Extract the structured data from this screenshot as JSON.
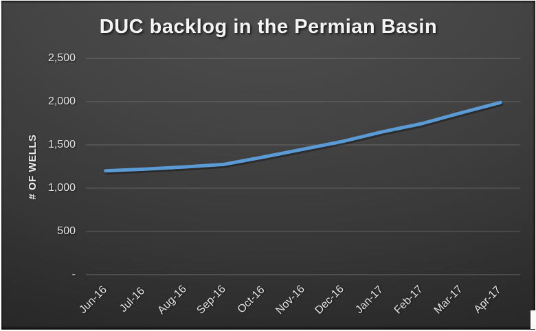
{
  "chart_data": {
    "type": "line",
    "title": "DUC backlog in the Permian Basin",
    "ylabel": "# OF WELLS",
    "xlabel": "",
    "categories": [
      "Jun-16",
      "Jul-16",
      "Aug-16",
      "Sep-16",
      "Oct-16",
      "Nov-16",
      "Dec-16",
      "Jan-17",
      "Feb-17",
      "Mar-17",
      "Apr-17"
    ],
    "values": [
      1200,
      1220,
      1245,
      1275,
      1360,
      1450,
      1540,
      1650,
      1745,
      1870,
      1990
    ],
    "ylim": [
      0,
      2500
    ],
    "y_ticks": [
      {
        "value": 0,
        "label": "-"
      },
      {
        "value": 500,
        "label": "500"
      },
      {
        "value": 1000,
        "label": "1,000"
      },
      {
        "value": 1500,
        "label": "1,500"
      },
      {
        "value": 2000,
        "label": "2,000"
      },
      {
        "value": 2500,
        "label": "2,500"
      }
    ],
    "grid": "horizontal",
    "legend_position": "none",
    "line_color": "#5b9bd5",
    "background_style": "dark-gray-radial-gradient",
    "text_color": "#f4f4f4"
  }
}
